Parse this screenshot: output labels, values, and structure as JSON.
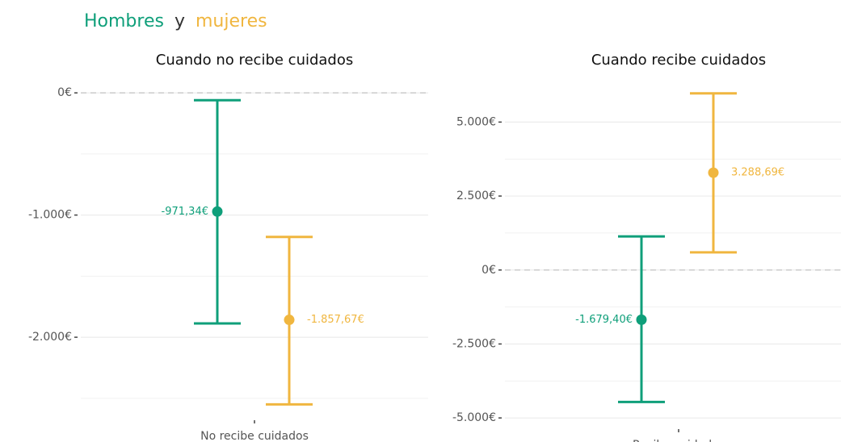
{
  "heading_joiner": "y",
  "chart_data": [
    {
      "type": "errorbar",
      "title": "Cuando no recibe cuidados",
      "categories": [
        "No recibe cuidados"
      ],
      "ylim": [
        -2600,
        100
      ],
      "yticks": [
        {
          "value": 0,
          "label": "0€"
        },
        {
          "value": -1000,
          "label": "-1.000€"
        },
        {
          "value": -2000,
          "label": "-2.000€"
        }
      ],
      "minor_yticks": [
        -500,
        -1500,
        -2500
      ],
      "reference_line": 0,
      "series": [
        {
          "name": "Hombres",
          "color": "#0f9f7a",
          "values": [
            -971.34
          ],
          "value_labels": [
            "-971,34€"
          ],
          "lower": [
            -1887
          ],
          "upper": [
            -60
          ]
        },
        {
          "name": "mujeres",
          "color": "#f0b63f",
          "values": [
            -1857.67
          ],
          "value_labels": [
            "-1.857,67€"
          ],
          "lower": [
            -2550
          ],
          "upper": [
            -1179
          ]
        }
      ]
    },
    {
      "type": "errorbar",
      "title": "Cuando recibe cuidados",
      "categories": [
        "Recibe cuidados"
      ],
      "ylim": [
        -5050,
        6400
      ],
      "yticks": [
        {
          "value": 5000,
          "label": "5.000€"
        },
        {
          "value": 2500,
          "label": "2.500€"
        },
        {
          "value": 0,
          "label": "0€"
        },
        {
          "value": -2500,
          "label": "-2.500€"
        },
        {
          "value": -5000,
          "label": "-5.000€"
        }
      ],
      "minor_yticks": [
        3750,
        1250,
        -1250,
        -3750
      ],
      "reference_line": 0,
      "series": [
        {
          "color": "#0f9f7a",
          "values": [
            -1679.4
          ],
          "value_labels": [
            "-1.679,40€"
          ],
          "lower": [
            -4460
          ],
          "upper": [
            1135
          ]
        },
        {
          "color": "#f0b63f",
          "values": [
            3288.69
          ],
          "value_labels": [
            "3.288,69€"
          ],
          "lower": [
            595
          ],
          "upper": [
            5970
          ]
        }
      ]
    }
  ]
}
